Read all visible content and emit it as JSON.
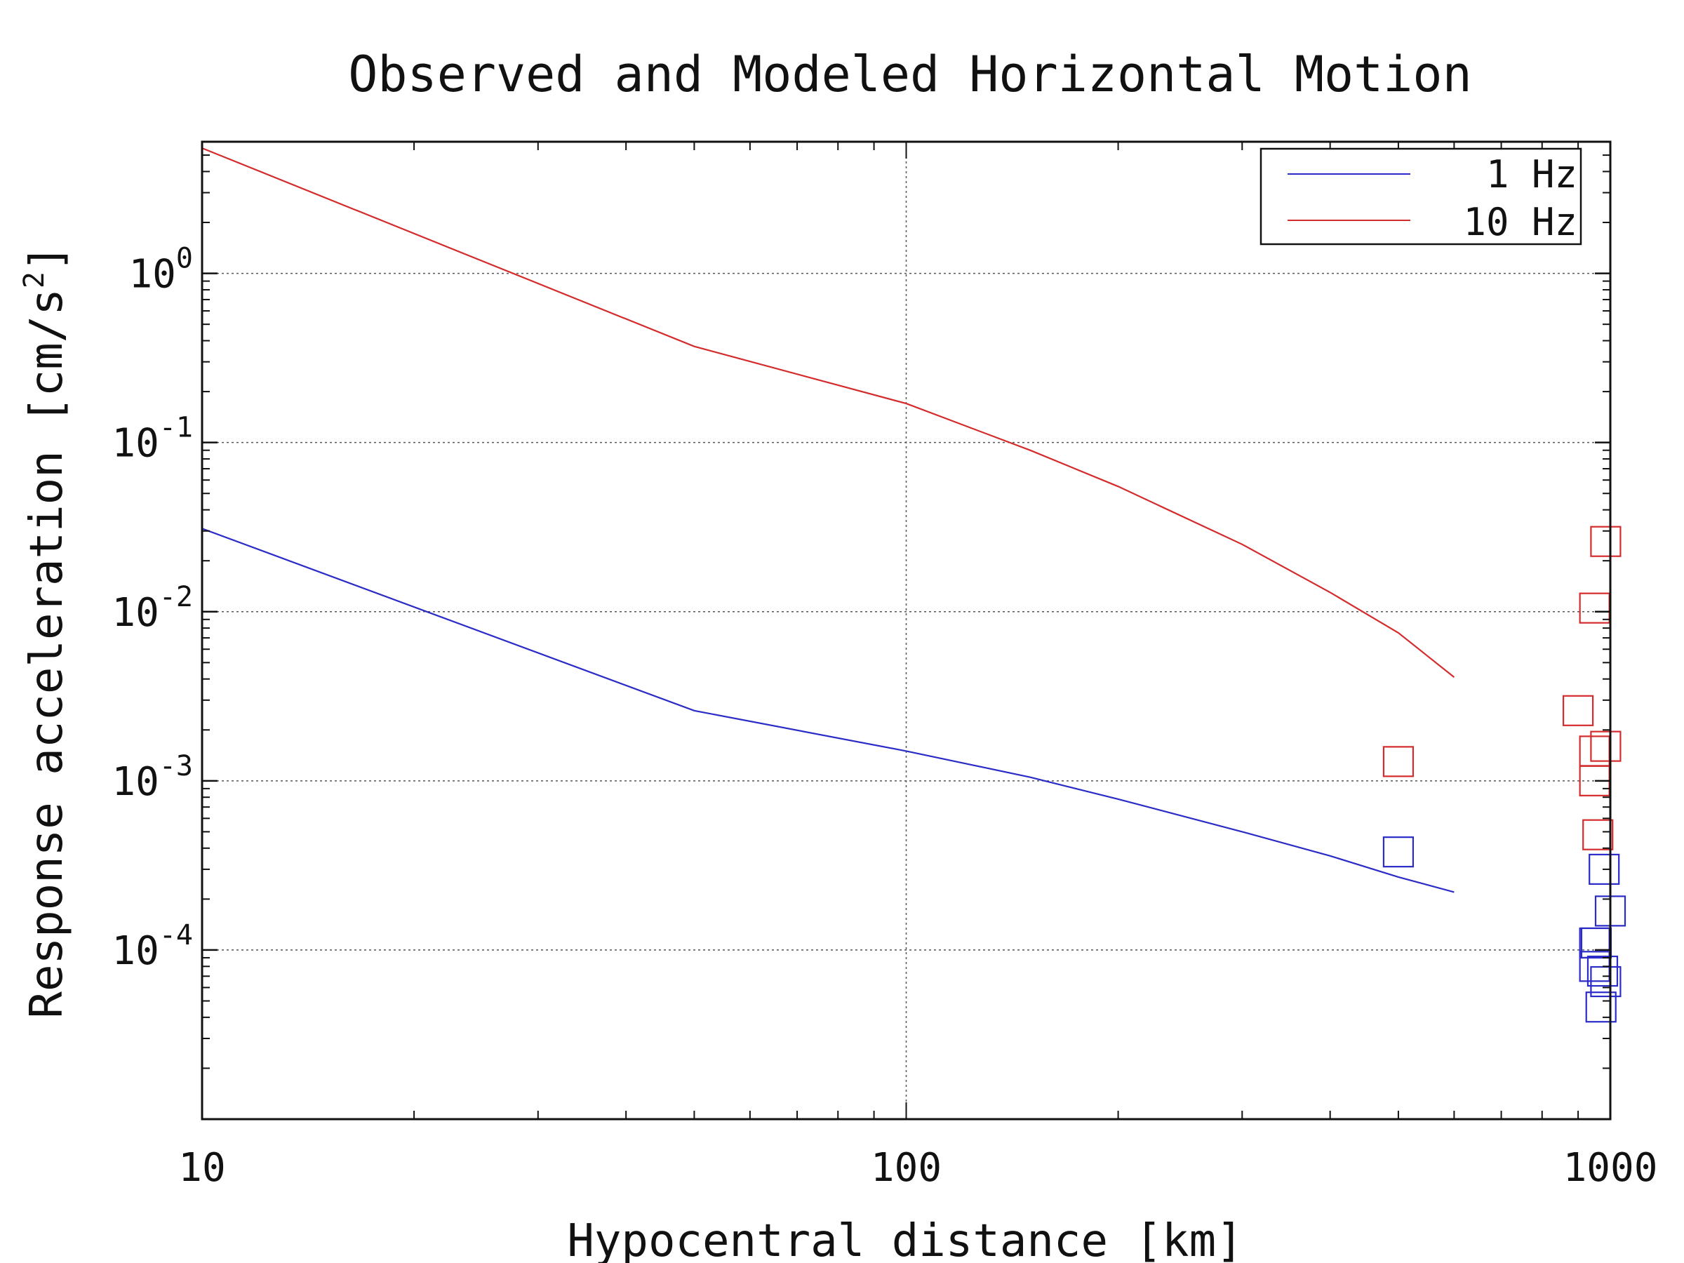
{
  "chart_data": {
    "type": "line",
    "title": "Observed and Modeled Horizontal Motion",
    "xlabel": "Hypocentral distance [km]",
    "ylabel": "Response acceleration [cm/s",
    "ylabel_exp": "2",
    "ylabel_end": "]",
    "x_scale": "log",
    "y_scale": "log",
    "xlim": [
      10,
      1000
    ],
    "ylim": [
      1e-05,
      6
    ],
    "grid": true,
    "legend_position": "top-right",
    "x_ticks": [
      {
        "value": 10,
        "label": "10"
      },
      {
        "value": 100,
        "label": "100"
      },
      {
        "value": 1000,
        "label": "1000"
      }
    ],
    "y_ticks": [
      {
        "value": 1,
        "base": "10",
        "exp": "0"
      },
      {
        "value": 0.1,
        "base": "10",
        "exp": "-1"
      },
      {
        "value": 0.01,
        "base": "10",
        "exp": "-2"
      },
      {
        "value": 0.001,
        "base": "10",
        "exp": "-3"
      },
      {
        "value": 0.0001,
        "base": "10",
        "exp": "-4"
      }
    ],
    "series": [
      {
        "name": "1 Hz",
        "color": "#2b2bc8",
        "line_x": [
          10,
          50,
          100,
          150,
          200,
          300,
          400,
          500,
          600
        ],
        "line_y": [
          0.031,
          0.0026,
          0.0015,
          0.00105,
          0.00078,
          0.0005,
          0.00036,
          0.00027,
          0.00022
        ],
        "obs_x": [
          500,
          980,
          1000,
          950,
          955,
          950,
          975,
          985,
          970
        ],
        "obs_y": [
          0.00038,
          0.0003,
          0.00017,
          0.00011,
          0.00011,
          8e-05,
          7.5e-05,
          6.5e-05,
          4.6e-05
        ]
      },
      {
        "name": "10 Hz",
        "color": "#d42c2c",
        "line_x": [
          10,
          50,
          100,
          150,
          200,
          300,
          400,
          500,
          600
        ],
        "line_y": [
          5.5,
          0.37,
          0.17,
          0.09,
          0.055,
          0.025,
          0.013,
          0.0075,
          0.0041
        ],
        "obs_x": [
          500,
          985,
          950,
          900,
          950,
          985,
          950,
          960
        ],
        "obs_y": [
          0.0013,
          0.026,
          0.0105,
          0.0026,
          0.0015,
          0.0016,
          0.001,
          0.00048
        ]
      }
    ]
  }
}
